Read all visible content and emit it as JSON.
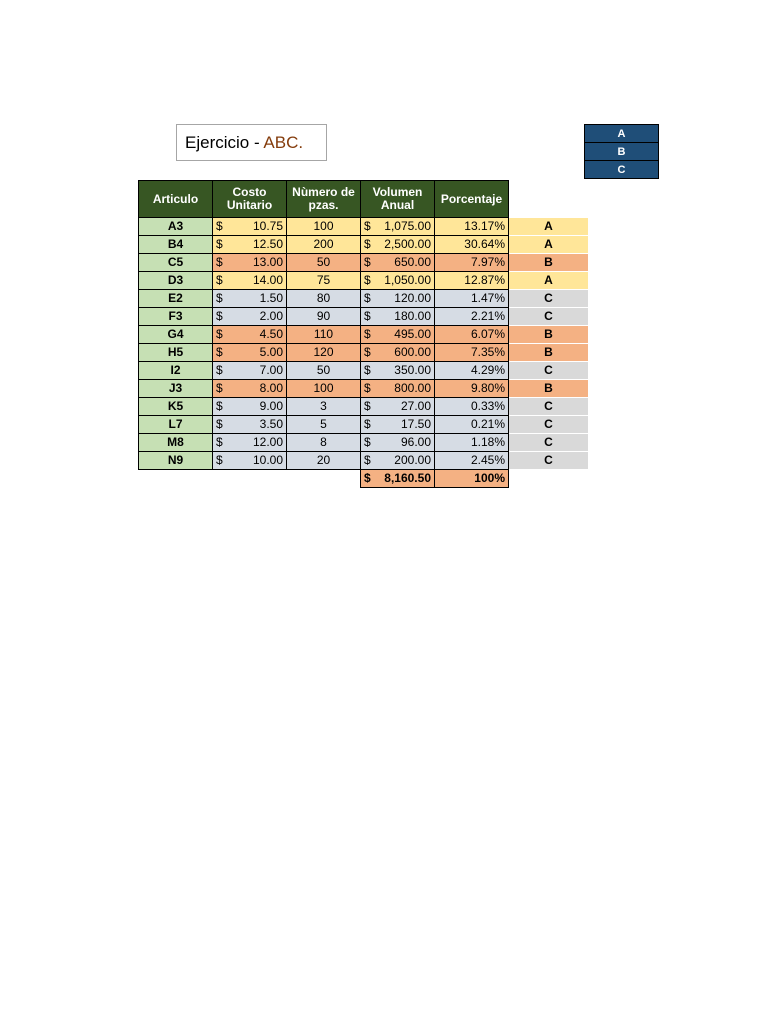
{
  "title": {
    "prefix": "Ejercicio - ",
    "accent": "ABC."
  },
  "legend": [
    "A",
    "B",
    "C"
  ],
  "headers": [
    "Articulo",
    "Costo Unitario",
    "Nùmero de pzas.",
    "Volumen Anual",
    "Porcentaje"
  ],
  "currency_symbol": "$",
  "rows": [
    {
      "item": "A3",
      "cost": "10.75",
      "qty": "100",
      "volume": "1,075.00",
      "pct": "13.17%",
      "class": "A"
    },
    {
      "item": "B4",
      "cost": "12.50",
      "qty": "200",
      "volume": "2,500.00",
      "pct": "30.64%",
      "class": "A"
    },
    {
      "item": "C5",
      "cost": "13.00",
      "qty": "50",
      "volume": "650.00",
      "pct": "7.97%",
      "class": "B"
    },
    {
      "item": "D3",
      "cost": "14.00",
      "qty": "75",
      "volume": "1,050.00",
      "pct": "12.87%",
      "class": "A"
    },
    {
      "item": "E2",
      "cost": "1.50",
      "qty": "80",
      "volume": "120.00",
      "pct": "1.47%",
      "class": "C"
    },
    {
      "item": "F3",
      "cost": "2.00",
      "qty": "90",
      "volume": "180.00",
      "pct": "2.21%",
      "class": "C"
    },
    {
      "item": "G4",
      "cost": "4.50",
      "qty": "110",
      "volume": "495.00",
      "pct": "6.07%",
      "class": "B"
    },
    {
      "item": "H5",
      "cost": "5.00",
      "qty": "120",
      "volume": "600.00",
      "pct": "7.35%",
      "class": "B"
    },
    {
      "item": "I2",
      "cost": "7.00",
      "qty": "50",
      "volume": "350.00",
      "pct": "4.29%",
      "class": "C"
    },
    {
      "item": "J3",
      "cost": "8.00",
      "qty": "100",
      "volume": "800.00",
      "pct": "9.80%",
      "class": "B"
    },
    {
      "item": "K5",
      "cost": "9.00",
      "qty": "3",
      "volume": "27.00",
      "pct": "0.33%",
      "class": "C"
    },
    {
      "item": "L7",
      "cost": "3.50",
      "qty": "5",
      "volume": "17.50",
      "pct": "0.21%",
      "class": "C"
    },
    {
      "item": "M8",
      "cost": "12.00",
      "qty": "8",
      "volume": "96.00",
      "pct": "1.18%",
      "class": "C"
    },
    {
      "item": "N9",
      "cost": "10.00",
      "qty": "20",
      "volume": "200.00",
      "pct": "2.45%",
      "class": "C"
    }
  ],
  "totals": {
    "volume": "8,160.50",
    "pct": "100%"
  },
  "colors": {
    "header_bg": "#375623",
    "item_bg": "#c6e0b4",
    "class_a": "#ffe699",
    "class_b": "#f4b183",
    "class_c": "#d6dce4",
    "legend_bg": "#1f4e78",
    "title_accent": "#843c0c"
  }
}
